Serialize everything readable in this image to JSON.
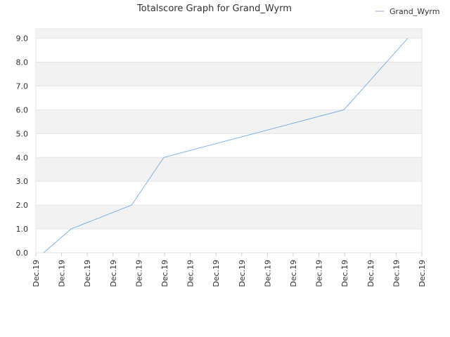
{
  "chart_data": {
    "type": "line",
    "title": "Totalscore Graph for Grand_Wyrm",
    "x": [
      0.3,
      1.37,
      3.72,
      4.97,
      11.97,
      14.45
    ],
    "series": [
      {
        "name": "Grand_Wyrm",
        "color": "#7cb5ec",
        "values": [
          0,
          1,
          2,
          4,
          6,
          9
        ]
      }
    ],
    "xlim": [
      0,
      15
    ],
    "xticks": [
      {
        "value": 0,
        "label": "Dec.19"
      },
      {
        "value": 1,
        "label": "Dec.19"
      },
      {
        "value": 2,
        "label": "Dec.19"
      },
      {
        "value": 3,
        "label": "Dec.19"
      },
      {
        "value": 4,
        "label": "Dec.19"
      },
      {
        "value": 5,
        "label": "Dec.19"
      },
      {
        "value": 6,
        "label": "Dec.19"
      },
      {
        "value": 7,
        "label": "Dec.19"
      },
      {
        "value": 8,
        "label": "Dec.19"
      },
      {
        "value": 9,
        "label": "Dec.19"
      },
      {
        "value": 10,
        "label": "Dec.19"
      },
      {
        "value": 11,
        "label": "Dec.19"
      },
      {
        "value": 12,
        "label": "Dec.19"
      },
      {
        "value": 13,
        "label": "Dec.19"
      },
      {
        "value": 14,
        "label": "Dec.19"
      },
      {
        "value": 15,
        "label": "Dec.19"
      }
    ],
    "ylim": [
      0,
      9.4
    ],
    "yticks": [
      {
        "value": 0,
        "label": "0.0"
      },
      {
        "value": 1,
        "label": "1.0"
      },
      {
        "value": 2,
        "label": "2.0"
      },
      {
        "value": 3,
        "label": "3.0"
      },
      {
        "value": 4,
        "label": "4.0"
      },
      {
        "value": 5,
        "label": "5.0"
      },
      {
        "value": 6,
        "label": "6.0"
      },
      {
        "value": 7,
        "label": "7.0"
      },
      {
        "value": 8,
        "label": "8.0"
      },
      {
        "value": 9,
        "label": "9.0"
      }
    ],
    "grid": true,
    "legend": "top-right"
  }
}
